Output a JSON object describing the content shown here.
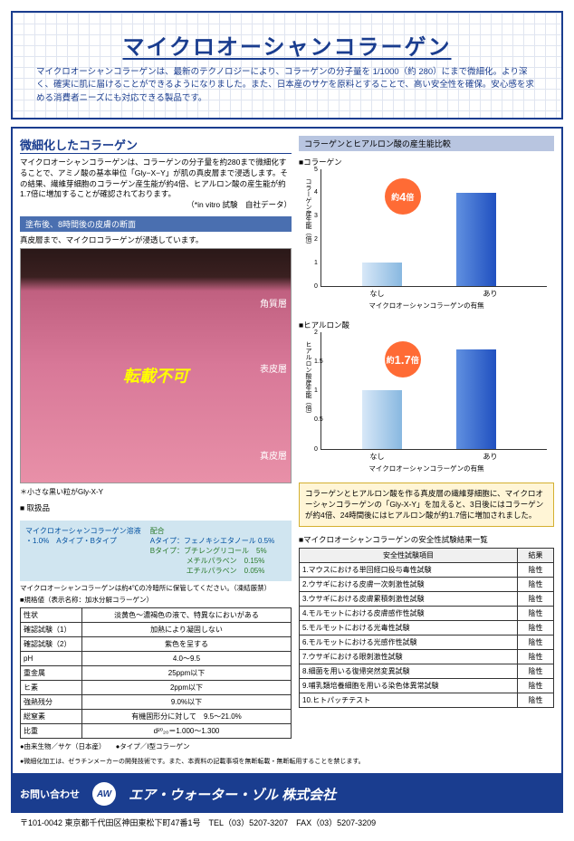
{
  "header": {
    "title": "マイクロオーシャンコラーゲン",
    "intro": "マイクロオーシャンコラーゲンは、最新のテクノロジーにより、コラーゲンの分子量を 1/1000（約 280）にまで微細化。より深く、確実に肌に届けることができるようになりました。また、日本産のサケを原料とすることで、高い安全性を確保。安心感を求める消費者ニーズにも対応できる製品です。"
  },
  "left": {
    "sec1_title": "微細化したコラーゲン",
    "sec1_body": "マイクロオーシャンコラーゲンは、コラーゲンの分子量を約280まで微細化することで、アミノ酸の基本単位「Gly−X−Y」が肌の真皮層まで浸透します。その結果、繊維芽細胞のコラーゲン産生能が約4倍、ヒアルロン酸の産生能が約1.7倍に増加することが確認されております。",
    "sec1_note": "（*in vitro 試験　自社データ）",
    "band": "塗布後、8時間後の皮膚の断面",
    "caption": "真皮層まで、マイクロコラーゲンが浸透しています。",
    "skin_labels": [
      "角質層",
      "表皮層",
      "真皮層"
    ],
    "overlay": "転載不可",
    "note": "＊小さな黒い粒がGly-X-Y",
    "prod_title": "■ 取扱品",
    "prod_name": "マイクロオーシャンコラーゲン溶液",
    "prod_types": "・1.0%　Aタイプ・Bタイプ",
    "blend_title": "配合",
    "blend_a": "Aタイプ：フェノキシエタノール 0.5%",
    "blend_b": "Bタイプ：ブチレングリコール　5%",
    "blend_b2": "メチルパラベン　0.15%",
    "blend_b3": "エチルパラベン　0.05%",
    "storage": "マイクロオーシャンコラーゲンは約4℃の冷暗所に保管してください。（凍結厳禁）",
    "spec_head": "■規格値（表示名称：加水分解コラーゲン）",
    "spec_rows": [
      [
        "性状",
        "淡黄色～濃褐色の液で、特異なにおいがある"
      ],
      [
        "確認試験（1）",
        "加熱により凝固しない"
      ],
      [
        "確認試験（2）",
        "紫色を呈する"
      ],
      [
        "pH",
        "4.0～9.5"
      ],
      [
        "重金属",
        "25ppm以下"
      ],
      [
        "ヒ素",
        "2ppm以下"
      ],
      [
        "強熱残分",
        "9.0%以下"
      ],
      [
        "総窒素",
        "有機固形分に対して　9.5～21.0%"
      ],
      [
        "比重",
        "d²⁰₂₀＝1.000～1.300"
      ]
    ],
    "bullets": "●由来生物／サケ（日本産）　　●タイプ／Ⅰ型コラーゲン"
  },
  "right": {
    "chart_head": "コラーゲンとヒアルロン酸の産生能比較",
    "chart1": {
      "sub": "■コラーゲン",
      "ylabel": "コラーゲン産生能（倍）",
      "badge": "約4倍",
      "ylim": 5,
      "ticks": [
        0,
        1,
        2,
        3,
        4,
        5
      ],
      "bars": [
        {
          "label": "なし",
          "value": 1,
          "color1": "#d8e8f8",
          "color2": "#88b8e0"
        },
        {
          "label": "あり",
          "value": 4,
          "color1": "#6090e0",
          "color2": "#2050c0"
        }
      ],
      "caption": "マイクロオーシャンコラーゲンの有無"
    },
    "chart2": {
      "sub": "■ヒアルロン酸",
      "ylabel": "ヒアルロン酸産生能（倍）",
      "badge": "約1.7倍",
      "ylim": 2,
      "ticks": [
        0,
        0.5,
        1,
        1.5,
        2
      ],
      "bars": [
        {
          "label": "なし",
          "value": 1,
          "color1": "#d8e8f8",
          "color2": "#88b8e0"
        },
        {
          "label": "あり",
          "value": 1.7,
          "color1": "#6090e0",
          "color2": "#2050c0"
        }
      ],
      "caption": "マイクロオーシャンコラーゲンの有無"
    },
    "info": "コラーゲンとヒアルロン酸を作る真皮層の繊維芽細胞に、マイクロオーシャンコラーゲンの「Gly-X-Y」を加えると、3日後にはコラーゲンが約4倍、24時間後にはヒアルロン酸が約1.7倍に増加されました。",
    "safety_head": "■マイクロオーシャンコラーゲンの安全性試験結果一覧",
    "safety_th": [
      "安全性試験項目",
      "結果"
    ],
    "safety_rows": [
      [
        "1.マウスにおける単回経口投与毒性試験",
        "陰性"
      ],
      [
        "2.ウサギにおける皮膚一次刺激性試験",
        "陰性"
      ],
      [
        "3.ウサギにおける皮膚累積刺激性試験",
        "陰性"
      ],
      [
        "4.モルモットにおける皮膚感作性試験",
        "陰性"
      ],
      [
        "5.モルモットにおける光毒性試験",
        "陰性"
      ],
      [
        "6.モルモットにおける光感作性試験",
        "陰性"
      ],
      [
        "7.ウサギにおける眼刺激性試験",
        "陰性"
      ],
      [
        "8.細菌を用いる復帰突然変異試験",
        "陰性"
      ],
      [
        "9.哺乳類培養細胞を用いる染色体異常試験",
        "陰性"
      ],
      [
        "10.ヒトパッチテスト",
        "陰性"
      ]
    ]
  },
  "disclaimer": "●微細化加工は、ゼラチンメーカーの開発技術です。また、本資料の記載事項を無断転載・無断転用することを禁じます。",
  "footer": {
    "label": "お問い合わせ",
    "logo": "AW",
    "company": "エア・ウォーター・ゾル 株式会社",
    "addr": "〒101-0042 東京都千代田区神田東松下町47番1号　TEL（03）5207-3207　FAX（03）5207-3209"
  }
}
